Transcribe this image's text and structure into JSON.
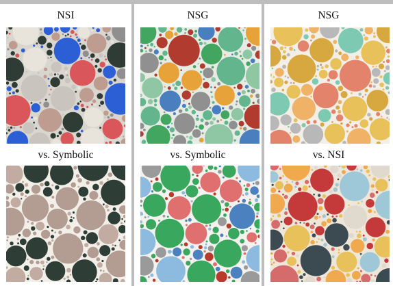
{
  "panels": [
    {
      "top_label": "NSI",
      "bottom_label": "vs. Symbolic",
      "top_image": {
        "description": "circle-packing pattern, textured photographic look",
        "background": "#d9d6cf",
        "palette": [
          "#2f3c36",
          "#2f3c36",
          "#2f3c36",
          "#8f8f8f",
          "#c9c4bd",
          "#bf9c90",
          "#2c5fd6",
          "#d9575a",
          "#e8e4dc"
        ]
      },
      "bottom_image": {
        "description": "circle-packing pattern, flat symbolic rendering",
        "background": "#f2efe9",
        "palette": [
          "#2e3e36",
          "#2e3e36",
          "#b39c92",
          "#b39c92",
          "#c2aca2"
        ]
      }
    },
    {
      "top_label": "NSG",
      "bottom_label": "vs. Symbolic",
      "top_image": {
        "description": "circle-packing pattern, generated",
        "background": "#e6ebe4",
        "palette": [
          "#62b58c",
          "#62b58c",
          "#43a660",
          "#b03b2e",
          "#e8a23a",
          "#909090",
          "#4a7fbf",
          "#8fc7a5"
        ]
      },
      "bottom_image": {
        "description": "circle-packing pattern, flat symbolic rendering",
        "background": "#f3f2ee",
        "palette": [
          "#39a85e",
          "#39a85e",
          "#b83a2a",
          "#4a81be",
          "#9a9a9a",
          "#8dbbe0",
          "#e07070"
        ]
      }
    },
    {
      "top_label": "NSG",
      "bottom_label": "vs. NSI",
      "top_image": {
        "description": "circle-packing pattern, pastel generated",
        "background": "#f3efe6",
        "palette": [
          "#e8c15a",
          "#e8c15a",
          "#7ec9b2",
          "#f0b266",
          "#b8b8b8",
          "#e3836b",
          "#d8a840"
        ]
      },
      "bottom_image": {
        "description": "circle-packing pattern, textured photographic look",
        "background": "#efe6da",
        "palette": [
          "#e8c15a",
          "#9ec7d8",
          "#f0a94c",
          "#c43a3a",
          "#3c4a52",
          "#e0d9ce",
          "#d66b6b"
        ]
      }
    }
  ]
}
